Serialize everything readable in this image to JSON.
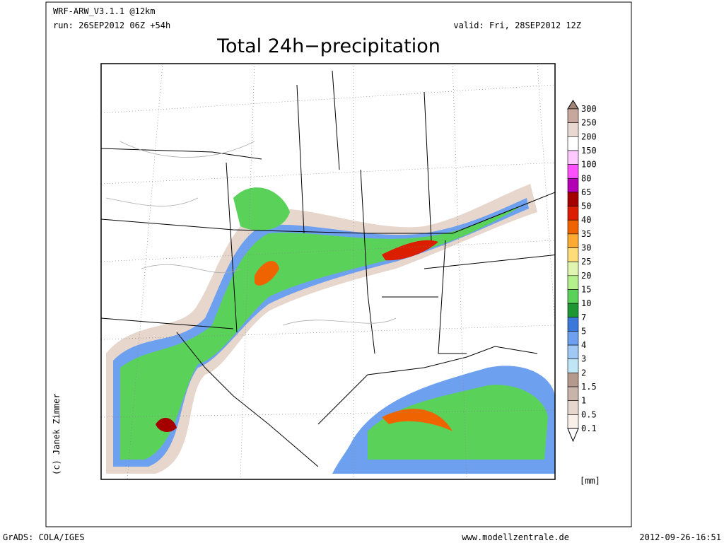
{
  "header": {
    "model": "WRF-ARW_V3.1.1 @12km",
    "run": "run: 26SEP2012 06Z +54h",
    "valid": "valid: Fri, 28SEP2012 12Z",
    "title": "Total 24h−precipitation"
  },
  "legend": {
    "labels": [
      "300",
      "250",
      "200",
      "150",
      "100",
      "80",
      "65",
      "50",
      "40",
      "35",
      "30",
      "25",
      "20",
      "15",
      "10",
      "7",
      "5",
      "4",
      "3",
      "2",
      "1.5",
      "1",
      "0.5",
      "0.1"
    ],
    "colors": [
      "#a08478",
      "#c8a89c",
      "#e8d8d0",
      "#ffffff",
      "#ffc8ff",
      "#ff50ff",
      "#b400b4",
      "#a50000",
      "#dc1e00",
      "#f06400",
      "#ffaa32",
      "#ffdc78",
      "#e0f5b0",
      "#b4f08c",
      "#5ad25a",
      "#1e9632",
      "#3c78dc",
      "#6ea0f0",
      "#a0c8f5",
      "#bee6f5",
      "#b49a8c",
      "#c8b4a8",
      "#e6d6cc",
      "#faf0ea",
      "#ffffff"
    ],
    "unit": "[mm]"
  },
  "credit": "(c) Janek Zimmer",
  "footer": {
    "left": "GrADS: COLA/IGES",
    "center": "www.modellzentrale.de",
    "right": "2012-09-26-16:51"
  }
}
